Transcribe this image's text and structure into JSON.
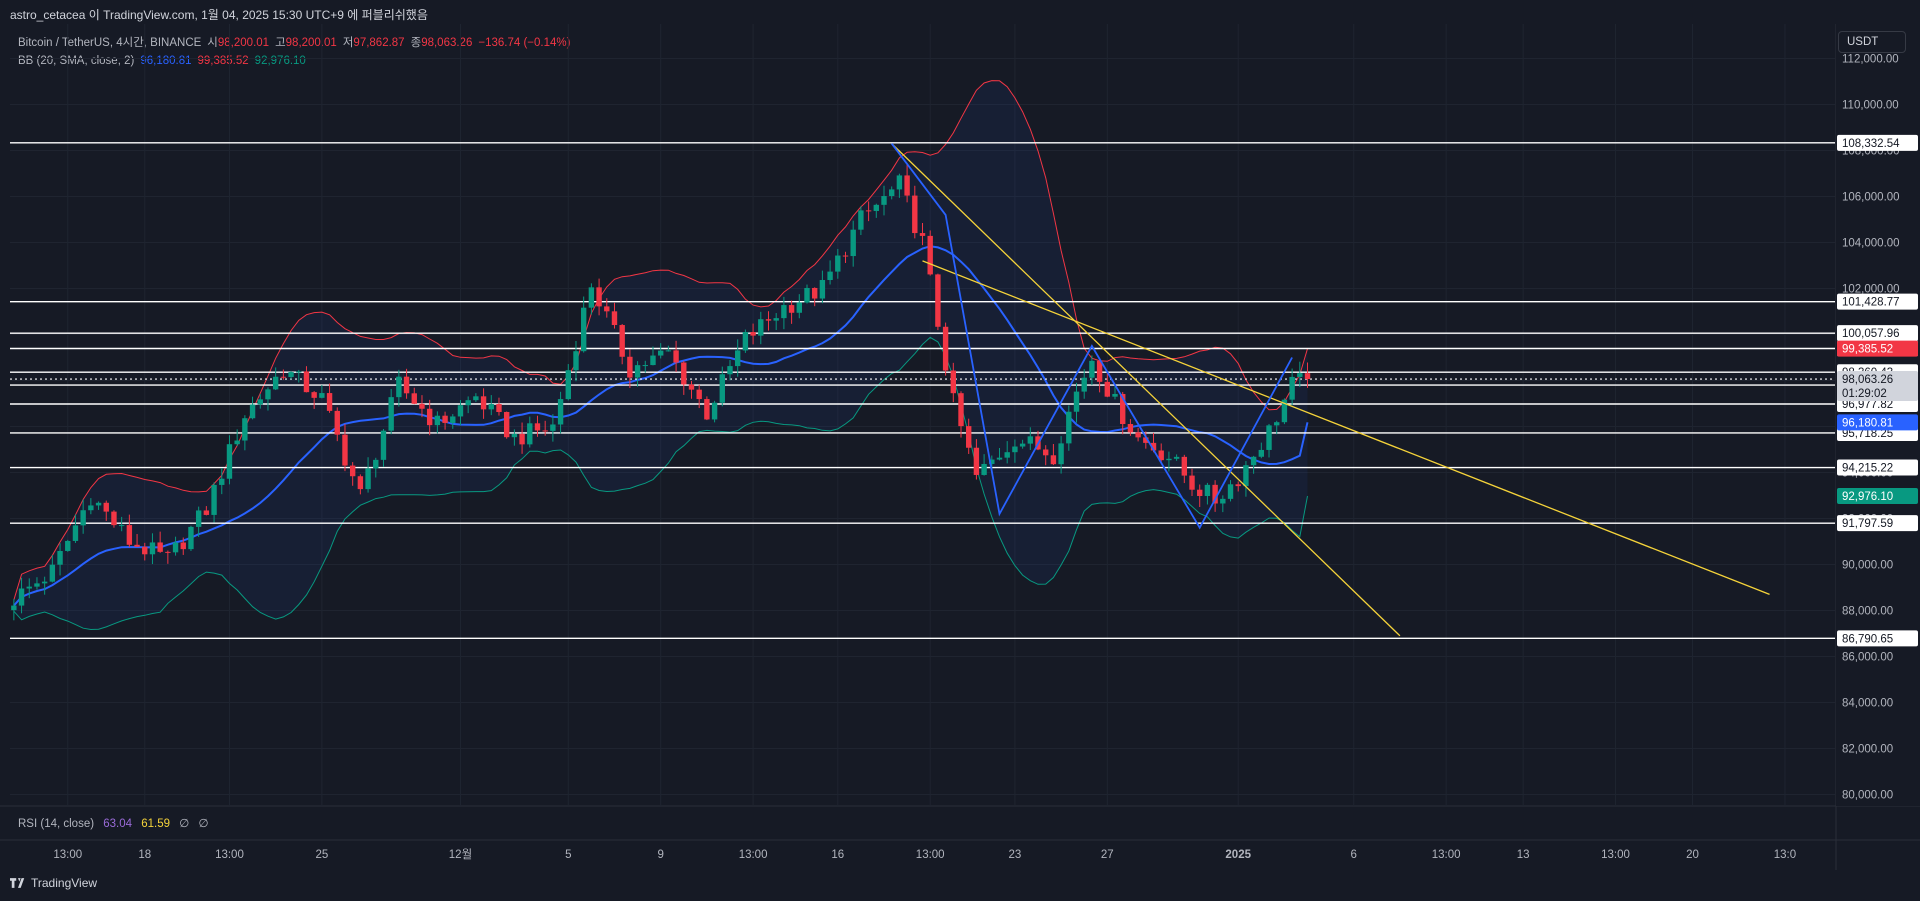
{
  "header": {
    "publish_note": "astro_cetacea 이 TradingView.com, 1월 04, 2025 15:30 UTC+9 에 퍼블리쉬했음"
  },
  "legend": {
    "symbol": "Bitcoin / TetherUS, 4시간, BINANCE",
    "open_label": "시",
    "open": "98,200.01",
    "high_label": "고",
    "high": "98,200.01",
    "low_label": "저",
    "low": "97,862.87",
    "close_label": "종",
    "close": "98,063.26",
    "change": "−136.74 (−0.14%)",
    "bb_label": "BB (20, SMA, close, 2)",
    "bb_basis": "96,180.81",
    "bb_upper": "99,385.52",
    "bb_lower": "92,976.10"
  },
  "currency_button": "USDT",
  "rsi": {
    "label": "RSI (14, close)",
    "value": "63.04",
    "ma": "61.59",
    "extra1": "∅",
    "extra2": "∅"
  },
  "footer": {
    "brand": "TradingView"
  },
  "colors": {
    "bg": "#161a25",
    "up": "#089981",
    "down": "#f23645",
    "basis": "#2962ff",
    "upper": "#f23645",
    "lower": "#089981",
    "trend": "#f5d33a",
    "level": "#ffffff"
  },
  "chart_data": {
    "type": "candlestick",
    "ylim": [
      79500,
      113500
    ],
    "y_ticks": [
      80000,
      82000,
      84000,
      86000,
      88000,
      90000,
      92000,
      94000,
      96000,
      98000,
      100000,
      102000,
      104000,
      106000,
      108000,
      110000,
      112000
    ],
    "y_tick_labels": [
      "80,000.00",
      "82,000.00",
      "84,000.00",
      "86,000.00",
      "88,000.00",
      "90,000.00",
      "92,000.00",
      "94,000.00",
      "96,000.00",
      "98,000.00",
      "100,000.00",
      "102,000.00",
      "104,000.00",
      "106,000.00",
      "108,000.00",
      "110,000.00",
      "112,000.00"
    ],
    "x_ticks": [
      "13:00",
      "18",
      "13:00",
      "25",
      "12월",
      "5",
      "9",
      "13:00",
      "16",
      "13:00",
      "23",
      "27",
      "2025",
      "6",
      "13:00",
      "13",
      "13:00",
      "20",
      "13:0"
    ],
    "x_tick_bars": [
      7,
      17,
      28,
      40,
      58,
      72,
      84,
      96,
      107,
      119,
      130,
      142,
      159,
      174,
      186,
      196,
      208,
      218,
      230
    ],
    "bars_visible": 237,
    "close_path_anchors": [
      [
        0,
        88500
      ],
      [
        5,
        89700
      ],
      [
        10,
        93000
      ],
      [
        15,
        91000
      ],
      [
        20,
        90200
      ],
      [
        25,
        92400
      ],
      [
        30,
        96500
      ],
      [
        35,
        98500
      ],
      [
        40,
        97200
      ],
      [
        45,
        93000
      ],
      [
        50,
        97800
      ],
      [
        55,
        96100
      ],
      [
        60,
        97300
      ],
      [
        65,
        95500
      ],
      [
        70,
        96000
      ],
      [
        75,
        102200
      ],
      [
        80,
        98500
      ],
      [
        85,
        99200
      ],
      [
        90,
        96600
      ],
      [
        95,
        99800
      ],
      [
        100,
        101200
      ],
      [
        105,
        102000
      ],
      [
        110,
        105000
      ],
      [
        115,
        106500
      ],
      [
        118,
        104000
      ],
      [
        122,
        97000
      ],
      [
        125,
        93800
      ],
      [
        130,
        95500
      ],
      [
        135,
        94800
      ],
      [
        138,
        97500
      ],
      [
        140,
        99000
      ],
      [
        143,
        97000
      ],
      [
        146,
        95500
      ],
      [
        150,
        94700
      ],
      [
        153,
        93500
      ],
      [
        156,
        92800
      ],
      [
        159,
        93800
      ],
      [
        163,
        95800
      ],
      [
        166,
        97800
      ],
      [
        168,
        98063
      ]
    ],
    "bollinger_upper_last": 99385.52,
    "bollinger_basis_last": 96180.81,
    "bollinger_lower_last": 92976.1,
    "horizontal_levels": [
      108332.54,
      101428.77,
      100057.96,
      99391.13,
      98360.43,
      97803.43,
      96977.82,
      95718.25,
      94215.22,
      91797.59,
      86790.65
    ],
    "horizontal_level_labels": [
      "108,332.54",
      "101,428.77",
      "100,057.96",
      "99,391.13",
      "98,360.43",
      "97,803.43",
      "96,977.82",
      "95,718.25",
      "94,215.22",
      "91,797.59",
      "86,790.65"
    ],
    "last_price": 98063.26,
    "last_price_label": "98,063.26",
    "countdown": "01:29:02",
    "basis_label": "96,180.81",
    "upper_label": "99,385.52",
    "lower_label": "92,976.10",
    "trendlines": [
      {
        "from": [
          114,
          108300
        ],
        "to": [
          180,
          86900
        ]
      },
      {
        "from": [
          118,
          103200
        ],
        "to": [
          228,
          88700
        ]
      }
    ],
    "pattern_path": [
      [
        114,
        108300
      ],
      [
        121,
        105200
      ],
      [
        128,
        92200
      ],
      [
        140,
        99500
      ],
      [
        154,
        91600
      ],
      [
        166,
        99000
      ]
    ]
  }
}
